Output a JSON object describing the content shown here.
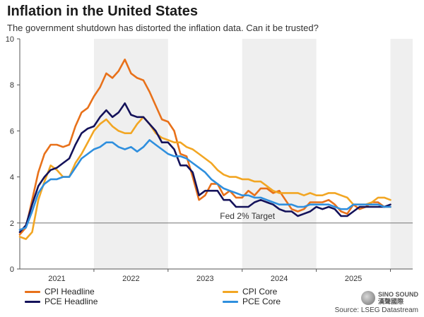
{
  "header": {
    "title": "Inflation in the United States",
    "subtitle": "The government shutdown has distorted the inflation data. Can it be trusted?"
  },
  "source": "Source: LSEG Datastream",
  "watermark": {
    "line1": "SINO SOUND",
    "line2": "漢聲國際"
  },
  "chart_data": {
    "type": "line",
    "title": "Inflation in the United States",
    "xlabel": "",
    "ylabel": "",
    "ylim": [
      0,
      10
    ],
    "xlim": [
      2020.5,
      2025.8
    ],
    "yticks": [
      0,
      2,
      4,
      6,
      8,
      10
    ],
    "xticks": [
      {
        "label": "2021",
        "center": 2021.0
      },
      {
        "label": "2022",
        "center": 2022.0
      },
      {
        "label": "2023",
        "center": 2023.0
      },
      {
        "label": "2024",
        "center": 2024.0
      },
      {
        "label": "2025",
        "center": 2025.0
      }
    ],
    "shaded_years": [
      [
        2021.5,
        2022.5
      ],
      [
        2023.5,
        2024.5
      ],
      [
        2025.5,
        2025.8
      ]
    ],
    "grid": false,
    "reference_line": {
      "y": 2.0,
      "label": "Fed 2% Target",
      "color": "#808080"
    },
    "legend": [
      {
        "name": "CPI Headline",
        "color": "#e8711a"
      },
      {
        "name": "CPI Core",
        "color": "#f2a623"
      },
      {
        "name": "PCE Headline",
        "color": "#14125a"
      },
      {
        "name": "PCE Core",
        "color": "#2f8fde"
      }
    ],
    "series": [
      {
        "name": "CPI Headline",
        "color": "#e8711a",
        "x": [
          2020.5,
          2020.583,
          2020.667,
          2020.75,
          2020.833,
          2020.917,
          2021.0,
          2021.083,
          2021.167,
          2021.25,
          2021.333,
          2021.417,
          2021.5,
          2021.583,
          2021.667,
          2021.75,
          2021.833,
          2021.917,
          2022.0,
          2022.083,
          2022.167,
          2022.25,
          2022.333,
          2022.417,
          2022.5,
          2022.583,
          2022.667,
          2022.75,
          2022.833,
          2022.917,
          2023.0,
          2023.083,
          2023.167,
          2023.25,
          2023.333,
          2023.417,
          2023.5,
          2023.583,
          2023.667,
          2023.75,
          2023.833,
          2023.917,
          2024.0,
          2024.083,
          2024.167,
          2024.25,
          2024.333,
          2024.417,
          2024.5,
          2024.583,
          2024.667,
          2024.75,
          2024.833,
          2024.917,
          2025.0,
          2025.083,
          2025.167,
          2025.25,
          2025.333,
          2025.417,
          2025.5
        ],
        "values": [
          1.5,
          1.8,
          3.0,
          4.2,
          5.0,
          5.4,
          5.4,
          5.3,
          5.4,
          6.2,
          6.8,
          7.0,
          7.5,
          7.9,
          8.5,
          8.3,
          8.6,
          9.1,
          8.5,
          8.3,
          8.2,
          7.7,
          7.1,
          6.5,
          6.4,
          6.0,
          5.0,
          4.9,
          4.0,
          3.0,
          3.2,
          3.7,
          3.7,
          3.2,
          3.4,
          3.1,
          3.1,
          3.4,
          3.2,
          3.5,
          3.5,
          3.3,
          3.4,
          3.0,
          2.6,
          2.5,
          2.6,
          2.9,
          2.9,
          2.9,
          3.0,
          2.8,
          2.5,
          2.4,
          2.8,
          2.6,
          2.7,
          2.9,
          2.9,
          2.7,
          2.7
        ]
      },
      {
        "name": "CPI Core",
        "color": "#f2a623",
        "x": [
          2020.5,
          2020.583,
          2020.667,
          2020.75,
          2020.833,
          2020.917,
          2021.0,
          2021.083,
          2021.167,
          2021.25,
          2021.333,
          2021.417,
          2021.5,
          2021.583,
          2021.667,
          2021.75,
          2021.833,
          2021.917,
          2022.0,
          2022.083,
          2022.167,
          2022.25,
          2022.333,
          2022.417,
          2022.5,
          2022.583,
          2022.667,
          2022.75,
          2022.833,
          2022.917,
          2023.0,
          2023.083,
          2023.167,
          2023.25,
          2023.333,
          2023.417,
          2023.5,
          2023.583,
          2023.667,
          2023.75,
          2023.833,
          2023.917,
          2024.0,
          2024.083,
          2024.167,
          2024.25,
          2024.333,
          2024.417,
          2024.5,
          2024.583,
          2024.667,
          2024.75,
          2024.833,
          2024.917,
          2025.0,
          2025.083,
          2025.167,
          2025.25,
          2025.333,
          2025.417,
          2025.5
        ],
        "values": [
          1.4,
          1.3,
          1.6,
          3.0,
          3.8,
          4.5,
          4.3,
          4.0,
          4.0,
          4.6,
          5.0,
          5.5,
          6.0,
          6.3,
          6.5,
          6.2,
          6.0,
          5.9,
          5.9,
          6.3,
          6.6,
          6.3,
          5.9,
          5.7,
          5.6,
          5.5,
          5.5,
          5.3,
          5.2,
          5.0,
          4.8,
          4.6,
          4.3,
          4.1,
          4.0,
          4.0,
          3.9,
          3.9,
          3.8,
          3.8,
          3.6,
          3.4,
          3.3,
          3.3,
          3.3,
          3.3,
          3.2,
          3.3,
          3.2,
          3.2,
          3.3,
          3.3,
          3.2,
          3.1,
          2.8,
          2.8,
          2.8,
          2.9,
          3.1,
          3.1,
          3.0
        ]
      },
      {
        "name": "PCE Headline",
        "color": "#14125a",
        "x": [
          2020.5,
          2020.583,
          2020.667,
          2020.75,
          2020.833,
          2020.917,
          2021.0,
          2021.083,
          2021.167,
          2021.25,
          2021.333,
          2021.417,
          2021.5,
          2021.583,
          2021.667,
          2021.75,
          2021.833,
          2021.917,
          2022.0,
          2022.083,
          2022.167,
          2022.25,
          2022.333,
          2022.417,
          2022.5,
          2022.583,
          2022.667,
          2022.75,
          2022.833,
          2022.917,
          2023.0,
          2023.083,
          2023.167,
          2023.25,
          2023.333,
          2023.417,
          2023.5,
          2023.583,
          2023.667,
          2023.75,
          2023.833,
          2023.917,
          2024.0,
          2024.083,
          2024.167,
          2024.25,
          2024.333,
          2024.417,
          2024.5,
          2024.583,
          2024.667,
          2024.75,
          2024.833,
          2024.917,
          2025.0,
          2025.083,
          2025.167,
          2025.25,
          2025.333,
          2025.417,
          2025.5
        ],
        "values": [
          1.6,
          1.9,
          2.8,
          3.6,
          4.0,
          4.3,
          4.4,
          4.6,
          4.8,
          5.4,
          5.9,
          6.1,
          6.2,
          6.6,
          6.9,
          6.6,
          6.8,
          7.2,
          6.7,
          6.6,
          6.6,
          6.3,
          6.0,
          5.5,
          5.5,
          5.2,
          4.5,
          4.5,
          4.2,
          3.2,
          3.4,
          3.4,
          3.4,
          3.0,
          3.0,
          2.7,
          2.7,
          2.7,
          2.9,
          3.0,
          2.9,
          2.8,
          2.6,
          2.5,
          2.5,
          2.3,
          2.4,
          2.5,
          2.7,
          2.6,
          2.7,
          2.6,
          2.3,
          2.3,
          2.5,
          2.7,
          2.7,
          2.7,
          2.7,
          2.7,
          2.8
        ]
      },
      {
        "name": "PCE Core",
        "color": "#2f8fde",
        "x": [
          2020.5,
          2020.583,
          2020.667,
          2020.75,
          2020.833,
          2020.917,
          2021.0,
          2021.083,
          2021.167,
          2021.25,
          2021.333,
          2021.417,
          2021.5,
          2021.583,
          2021.667,
          2021.75,
          2021.833,
          2021.917,
          2022.0,
          2022.083,
          2022.167,
          2022.25,
          2022.333,
          2022.417,
          2022.5,
          2022.583,
          2022.667,
          2022.75,
          2022.833,
          2022.917,
          2023.0,
          2023.083,
          2023.167,
          2023.25,
          2023.333,
          2023.417,
          2023.5,
          2023.583,
          2023.667,
          2023.75,
          2023.833,
          2023.917,
          2024.0,
          2024.083,
          2024.167,
          2024.25,
          2024.333,
          2024.417,
          2024.5,
          2024.583,
          2024.667,
          2024.75,
          2024.833,
          2024.917,
          2025.0,
          2025.083,
          2025.167,
          2025.25,
          2025.333,
          2025.417,
          2025.5
        ],
        "values": [
          1.7,
          1.8,
          2.5,
          3.3,
          3.7,
          3.9,
          3.9,
          4.0,
          4.0,
          4.4,
          4.8,
          5.0,
          5.2,
          5.3,
          5.5,
          5.5,
          5.3,
          5.2,
          5.3,
          5.1,
          5.3,
          5.6,
          5.4,
          5.2,
          5.0,
          4.9,
          4.9,
          4.8,
          4.6,
          4.4,
          4.2,
          3.9,
          3.7,
          3.5,
          3.4,
          3.3,
          3.2,
          3.2,
          3.1,
          3.1,
          3.0,
          2.9,
          2.8,
          2.8,
          2.8,
          2.7,
          2.7,
          2.8,
          2.8,
          2.8,
          2.8,
          2.7,
          2.6,
          2.6,
          2.8,
          2.8,
          2.8,
          2.8,
          2.8,
          2.7,
          2.7
        ]
      }
    ]
  }
}
